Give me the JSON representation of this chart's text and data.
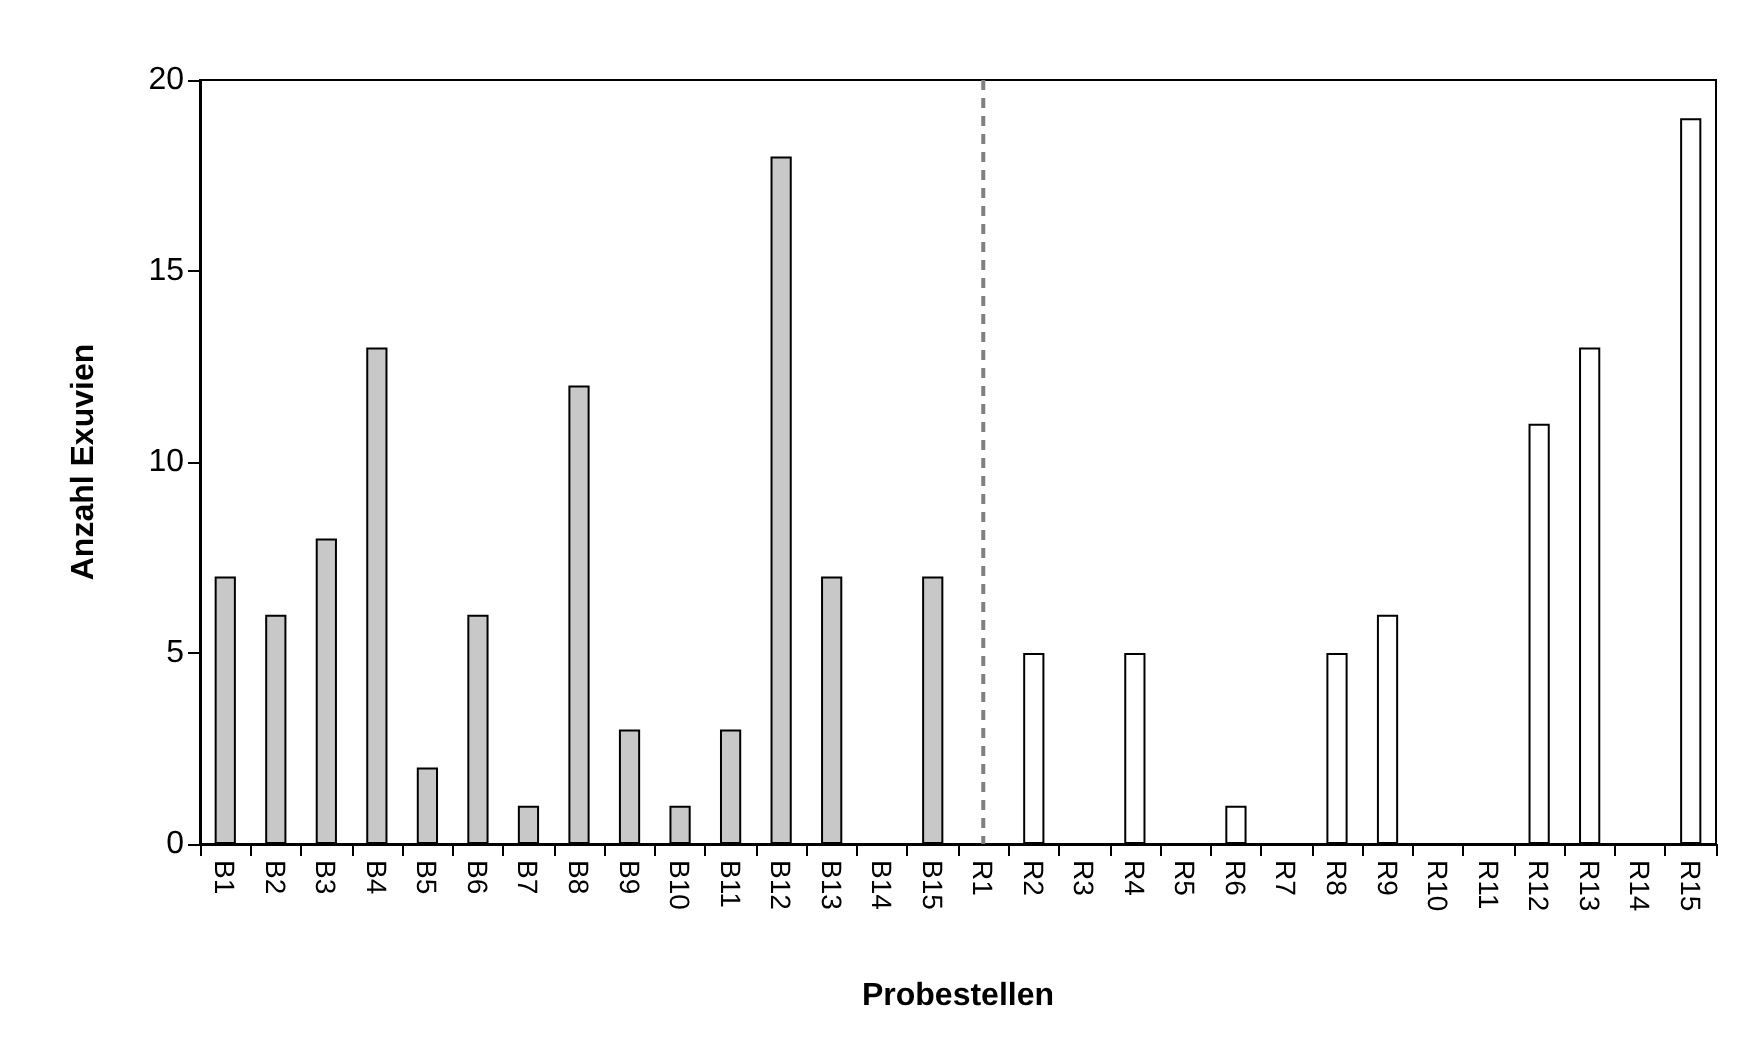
{
  "chart_data": {
    "type": "bar",
    "xlabel": "Probestellen",
    "ylabel": "Anzahl Exuvien",
    "categories": [
      "B1",
      "B2",
      "B3",
      "B4",
      "B5",
      "B6",
      "B7",
      "B8",
      "B9",
      "B10",
      "B11",
      "B12",
      "B13",
      "B14",
      "B15",
      "R1",
      "R2",
      "R3",
      "R4",
      "R5",
      "R6",
      "R7",
      "R8",
      "R9",
      "R10",
      "R11",
      "R12",
      "R13",
      "R14",
      "R15"
    ],
    "values": [
      7,
      6,
      8,
      13,
      2,
      6,
      1,
      12,
      3,
      1,
      3,
      18,
      7,
      0,
      7,
      0,
      5,
      0,
      5,
      0,
      1,
      0,
      5,
      6,
      0,
      0,
      11,
      13,
      0,
      19
    ],
    "colors": [
      "#c8c8c8",
      "#c8c8c8",
      "#c8c8c8",
      "#c8c8c8",
      "#c8c8c8",
      "#c8c8c8",
      "#c8c8c8",
      "#c8c8c8",
      "#c8c8c8",
      "#c8c8c8",
      "#c8c8c8",
      "#c8c8c8",
      "#c8c8c8",
      "#c8c8c8",
      "#c8c8c8",
      "#ffffff",
      "#ffffff",
      "#ffffff",
      "#ffffff",
      "#ffffff",
      "#ffffff",
      "#ffffff",
      "#ffffff",
      "#ffffff",
      "#ffffff",
      "#ffffff",
      "#ffffff",
      "#ffffff",
      "#ffffff",
      "#ffffff"
    ],
    "ylim": [
      0,
      20
    ],
    "yticks": [
      0,
      5,
      10,
      15,
      20
    ],
    "grid": false,
    "ref_lines": [
      {
        "axis": "x",
        "value": "R1",
        "color": "#808080",
        "line_style": "dashed"
      }
    ]
  }
}
